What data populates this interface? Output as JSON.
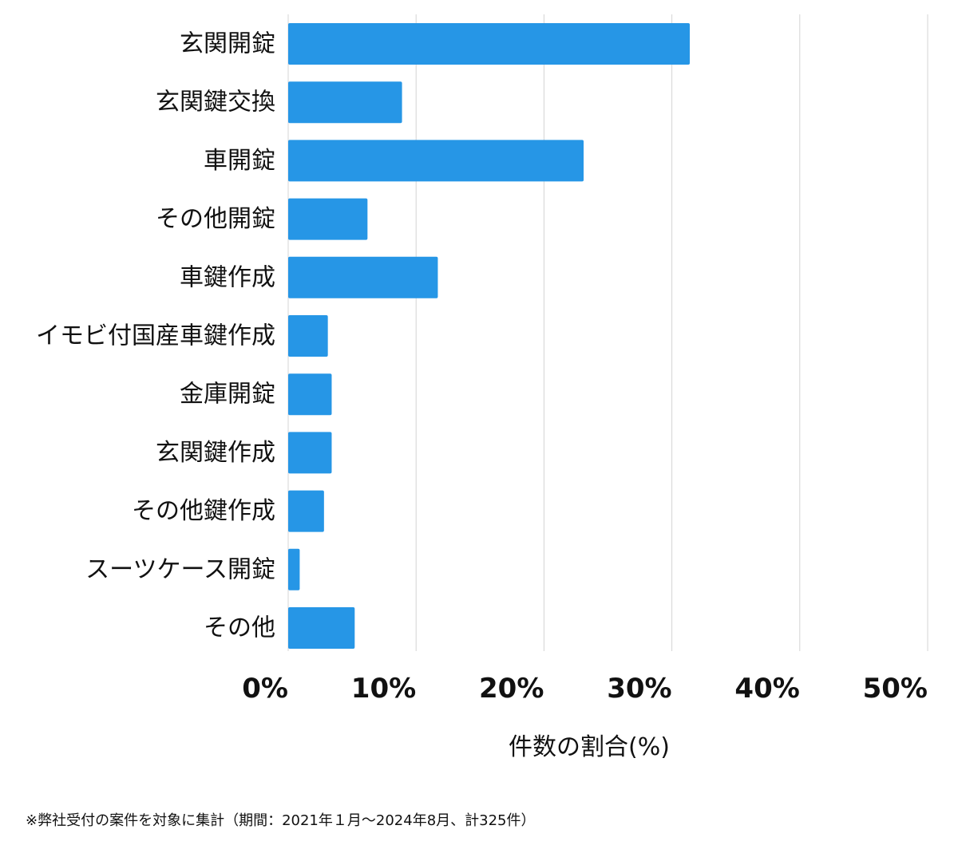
{
  "chart_data": {
    "type": "bar",
    "orientation": "horizontal",
    "categories": [
      "玄関開錠",
      "玄関鍵交換",
      "車開錠",
      "その他開錠",
      "車鍵作成",
      "イモビ付国産車鍵作成",
      "金庫開錠",
      "玄関鍵作成",
      "その他鍵作成",
      "スーツケース開錠",
      "その他"
    ],
    "values": [
      31.4,
      8.9,
      23.1,
      6.2,
      11.7,
      3.1,
      3.4,
      3.4,
      2.8,
      0.9,
      5.2
    ],
    "xlim": [
      0,
      50
    ],
    "xticks": [
      0,
      10,
      20,
      30,
      40,
      50
    ],
    "tick_labels": [
      "0%",
      "10%",
      "20%",
      "30%",
      "40%",
      "50%"
    ],
    "xlabel": "件数の割合(%)",
    "grid": "vertical",
    "colors": {
      "bar": "#2696e6",
      "grid": "#d4d4d4",
      "text": "#111111"
    }
  },
  "footnote": "※弊社受付の案件を対象に集計（期間：2021年１月〜2024年8月、計325件）"
}
